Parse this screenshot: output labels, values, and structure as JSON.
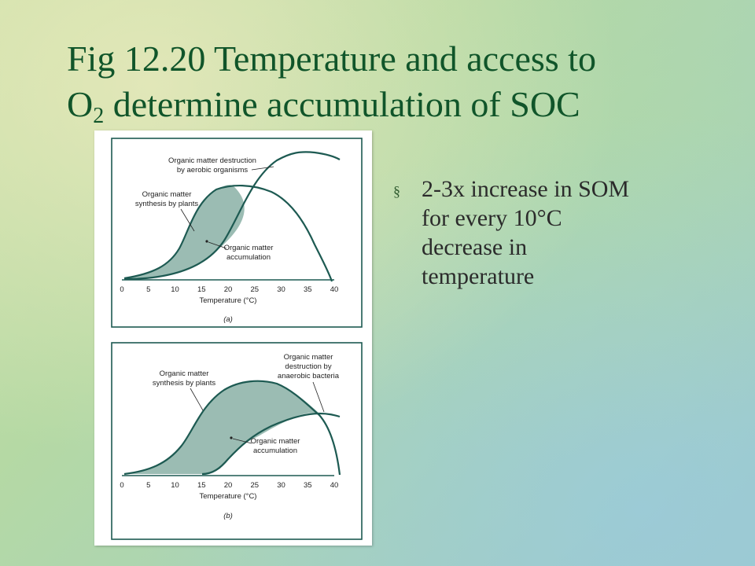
{
  "title": {
    "line1": "Fig 12.20 Temperature and access to",
    "o": "O",
    "sub": "2",
    "rest": " determine accumulation of SOC"
  },
  "bullets": [
    {
      "marker": "§",
      "lines": [
        "2-3x increase in SOM",
        "for every 10°C",
        "decrease in",
        "temperature"
      ]
    }
  ],
  "panel_a": {
    "labels": {
      "destruction_1": "Organic matter destruction",
      "destruction_2": "by aerobic organisms",
      "synthesis_1": "Organic matter",
      "synthesis_2": "synthesis by plants",
      "accum_1": "Organic matter",
      "accum_2": "accumulation",
      "xlabel": "Temperature (°C)",
      "panel": "(a)"
    }
  },
  "panel_b": {
    "labels": {
      "destruction_1": "Organic matter",
      "destruction_2": "destruction by",
      "destruction_3": "anaerobic bacteria",
      "synthesis_1": "Organic matter",
      "synthesis_2": "synthesis by plants",
      "accum_1": "Organic matter",
      "accum_2": "accumulation",
      "xlabel": "Temperature (°C)",
      "panel": "(b)"
    }
  },
  "ticks": [
    "0",
    "5",
    "10",
    "15",
    "20",
    "25",
    "30",
    "35",
    "40"
  ]
}
